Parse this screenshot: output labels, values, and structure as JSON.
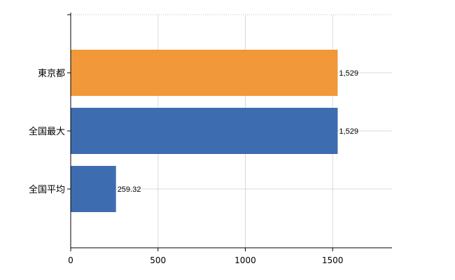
{
  "chart_data": {
    "type": "bar",
    "orientation": "horizontal",
    "categories": [
      "東京都",
      "全国最大",
      "全国平均"
    ],
    "values": [
      1529,
      1529,
      259.32
    ],
    "value_labels": [
      "1,529",
      "1,529",
      "259.32"
    ],
    "bar_colors": [
      "#f0983a",
      "#3d6cb0",
      "#3d6cb0"
    ],
    "xlim": [
      0,
      1840
    ],
    "xticks": [
      0,
      500,
      1000,
      1500
    ],
    "xtick_labels": [
      "0",
      "500",
      "1000",
      "1500"
    ],
    "grid": true,
    "title": "",
    "xlabel": "",
    "ylabel": ""
  }
}
